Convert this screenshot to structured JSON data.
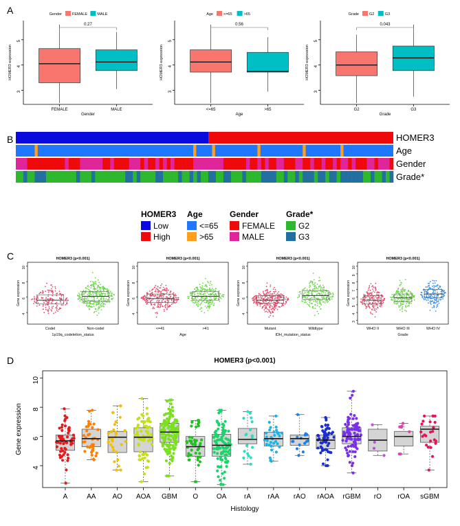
{
  "panel_letters": {
    "a": "A",
    "b": "B",
    "c": "C",
    "d": "D"
  },
  "colors": {
    "salmon": "#f8766d",
    "teal": "#00bfc4",
    "blue": "#0a0adf",
    "red": "#ee0a0a",
    "age_young": "#1f77ff",
    "age_old": "#ff9f1c",
    "female": "#ee0a0a",
    "male": "#e0249a",
    "g2": "#2db82d",
    "g3": "#236fa0",
    "codel": "#e64a6a",
    "noncodel": "#6ad649",
    "who2": "#e64a6a",
    "who3": "#6ad649",
    "who4": "#3a8fe6",
    "boxgrey": "#d4d4d4"
  },
  "chart_data": [
    {
      "id": "A1",
      "type": "boxplot",
      "legend_title": "Gender",
      "legend": [
        "FEMALE",
        "MALE"
      ],
      "categories": [
        "FEMALE",
        "MALE"
      ],
      "xlabel": "Gender",
      "ylabel": "HOMER3 expression",
      "ylim": [
        2.5,
        5.7
      ],
      "yticks": [
        "3",
        "4",
        "5"
      ],
      "pvalue": "0.27",
      "boxes": [
        {
          "label": "FEMALE",
          "min": 2.5,
          "q1": 3.3,
          "median": 4.05,
          "q3": 4.65,
          "max": 5.6
        },
        {
          "label": "MALE",
          "min": 3.05,
          "q1": 3.78,
          "median": 4.12,
          "q3": 4.6,
          "max": 5.3
        }
      ]
    },
    {
      "id": "A2",
      "type": "boxplot",
      "legend_title": "Age",
      "legend": [
        "<=65",
        ">65"
      ],
      "categories": [
        "<=65",
        ">65"
      ],
      "xlabel": "Age",
      "ylabel": "HOMER3 expression",
      "ylim": [
        2.5,
        5.7
      ],
      "yticks": [
        "3",
        "4",
        "5"
      ],
      "pvalue": "0.56",
      "boxes": [
        {
          "label": "<=65",
          "min": 2.5,
          "q1": 3.72,
          "median": 4.12,
          "q3": 4.6,
          "max": 5.6
        },
        {
          "label": ">65",
          "min": 2.95,
          "q1": 3.72,
          "median": 3.75,
          "q3": 4.5,
          "max": 5.1
        }
      ]
    },
    {
      "id": "A3",
      "type": "boxplot",
      "legend_title": "Grade",
      "legend": [
        "G2",
        "G3"
      ],
      "categories": [
        "G2",
        "G3"
      ],
      "xlabel": "Grade",
      "ylabel": "HOMER3 expression",
      "ylim": [
        2.5,
        5.7
      ],
      "yticks": [
        "3",
        "4",
        "5"
      ],
      "pvalue": "0.043",
      "boxes": [
        {
          "label": "G2",
          "min": 2.5,
          "q1": 3.58,
          "median": 4.0,
          "q3": 4.52,
          "max": 5.2
        },
        {
          "label": "G3",
          "min": 2.75,
          "q1": 3.78,
          "median": 4.28,
          "q3": 4.75,
          "max": 5.6
        }
      ]
    },
    {
      "id": "B",
      "type": "heatmap",
      "n_samples": 100,
      "rows": [
        "HOMER3",
        "Age",
        "Gender",
        "Grade*"
      ],
      "homer3_low_fraction": 0.51,
      "age_old_samples": [
        5,
        47,
        52,
        64,
        76,
        86
      ],
      "legend": [
        {
          "title": "HOMER3",
          "items": [
            "Low",
            "High"
          ]
        },
        {
          "title": "Age",
          "items": [
            "<=65",
            ">65"
          ]
        },
        {
          "title": "Gender",
          "items": [
            "FEMALE",
            "MALE"
          ]
        },
        {
          "title": "Grade*",
          "items": [
            "G2",
            "G3"
          ]
        }
      ]
    },
    {
      "id": "C1",
      "type": "beeswarm",
      "title": "HOMER3 (p<0.001)",
      "xlabel": "1p19q_codeletion_status",
      "ylabel": "Gene expression",
      "categories": [
        "Codel",
        "Non-codel"
      ],
      "ylim": [
        2.5,
        10.5
      ],
      "yticks": [
        "4",
        "6",
        "8",
        "10"
      ],
      "groups": [
        {
          "label": "Codel",
          "median": 5.6,
          "q1": 5.1,
          "q3": 6.3,
          "min": 3.5,
          "max": 8.5,
          "n": 160
        },
        {
          "label": "Non-codel",
          "median": 6.1,
          "q1": 5.5,
          "q3": 6.7,
          "min": 3.0,
          "max": 9.8,
          "n": 320
        }
      ]
    },
    {
      "id": "C2",
      "type": "beeswarm",
      "title": "HOMER3 (p<0.001)",
      "xlabel": "Age",
      "ylabel": "Gene expression",
      "categories": [
        "<=41",
        ">41"
      ],
      "ylim": [
        2.5,
        10.5
      ],
      "yticks": [
        "4",
        "6",
        "8",
        "10"
      ],
      "groups": [
        {
          "label": "<=41",
          "median": 5.8,
          "q1": 5.3,
          "q3": 6.4,
          "min": 3.2,
          "max": 9.6,
          "n": 260
        },
        {
          "label": ">41",
          "median": 6.1,
          "q1": 5.6,
          "q3": 6.7,
          "min": 3.3,
          "max": 8.5,
          "n": 260
        }
      ]
    },
    {
      "id": "C3",
      "type": "beeswarm",
      "title": "HOMER3 (p<0.001)",
      "xlabel": "IDH_mutation_status",
      "ylabel": "Gene expression",
      "categories": [
        "Mutant",
        "Wildtype"
      ],
      "ylim": [
        2.5,
        10.5
      ],
      "yticks": [
        "4",
        "6",
        "8",
        "10"
      ],
      "groups": [
        {
          "label": "Mutant",
          "median": 5.6,
          "q1": 5.2,
          "q3": 6.2,
          "min": 3.2,
          "max": 8.0,
          "n": 280
        },
        {
          "label": "Wildtype",
          "median": 6.2,
          "q1": 5.7,
          "q3": 6.8,
          "min": 3.0,
          "max": 9.5,
          "n": 240
        }
      ]
    },
    {
      "id": "C4",
      "type": "beeswarm",
      "title": "HOMER3 (p<0.001)",
      "xlabel": "Grade",
      "ylabel": "Gene expression",
      "categories": [
        "WHO II",
        "WHO III",
        "WHO IV"
      ],
      "ylim": [
        2.5,
        10.5
      ],
      "yticks": [
        "3",
        "4",
        "5",
        "6",
        "7",
        "8",
        "9",
        "10"
      ],
      "groups": [
        {
          "label": "WHO II",
          "median": 5.6,
          "q1": 5.1,
          "q3": 6.2,
          "min": 3.1,
          "max": 8.0,
          "n": 180
        },
        {
          "label": "WHO III",
          "median": 5.9,
          "q1": 5.4,
          "q3": 6.4,
          "min": 3.3,
          "max": 9.0,
          "n": 180
        },
        {
          "label": "WHO IV",
          "median": 6.4,
          "q1": 5.9,
          "q3": 7.0,
          "min": 3.8,
          "max": 9.8,
          "n": 180
        }
      ]
    },
    {
      "id": "D",
      "type": "boxplot_jitter",
      "title": "HOMER3 (p<0.001)",
      "xlabel": "Histology",
      "ylabel": "Gene expression",
      "ylim": [
        2.5,
        10.5
      ],
      "yticks": [
        "4",
        "6",
        "8",
        "10"
      ],
      "categories": [
        "A",
        "AA",
        "AO",
        "AOA",
        "GBM",
        "O",
        "OA",
        "rA",
        "rAA",
        "rAO",
        "rAOA",
        "rGBM",
        "rO",
        "rOA",
        "sGBM"
      ],
      "groups": [
        {
          "label": "A",
          "color": "#e41a1c",
          "min": 2.8,
          "q1": 5.05,
          "median": 5.7,
          "q3": 6.1,
          "max": 7.9,
          "n": 60
        },
        {
          "label": "AA",
          "color": "#ff7f00",
          "min": 4.4,
          "q1": 5.3,
          "median": 5.85,
          "q3": 6.5,
          "max": 7.8,
          "n": 40
        },
        {
          "label": "AO",
          "color": "#f0c000",
          "min": 3.7,
          "q1": 4.9,
          "median": 5.95,
          "q3": 6.35,
          "max": 8.1,
          "n": 30
        },
        {
          "label": "AOA",
          "color": "#c6e017",
          "min": 2.9,
          "q1": 4.95,
          "median": 5.95,
          "q3": 6.6,
          "max": 8.6,
          "n": 70
        },
        {
          "label": "GBM",
          "color": "#7be01f",
          "min": 3.3,
          "q1": 5.6,
          "median": 6.3,
          "q3": 6.9,
          "max": 8.5,
          "n": 150
        },
        {
          "label": "O",
          "color": "#22c022",
          "min": 2.9,
          "q1": 4.65,
          "median": 5.3,
          "q3": 6.0,
          "max": 7.1,
          "n": 45
        },
        {
          "label": "OA",
          "color": "#19d46b",
          "min": 2.7,
          "q1": 4.65,
          "median": 5.4,
          "q3": 6.15,
          "max": 7.8,
          "n": 100
        },
        {
          "label": "rA",
          "color": "#2adfc0",
          "min": 4.1,
          "q1": 5.5,
          "median": 5.8,
          "q3": 6.55,
          "max": 7.7,
          "n": 18
        },
        {
          "label": "rAA",
          "color": "#18b4e8",
          "min": 4.3,
          "q1": 5.35,
          "median": 5.85,
          "q3": 6.3,
          "max": 7.4,
          "n": 32
        },
        {
          "label": "rAO",
          "color": "#1a7fe8",
          "min": 4.7,
          "q1": 5.4,
          "median": 5.85,
          "q3": 6.1,
          "max": 7.5,
          "n": 15
        },
        {
          "label": "rAOA",
          "color": "#1a2fd0",
          "min": 4.0,
          "q1": 5.15,
          "median": 5.75,
          "q3": 6.1,
          "max": 7.3,
          "n": 60
        },
        {
          "label": "rGBM",
          "color": "#7a2fe8",
          "min": 3.5,
          "q1": 5.5,
          "median": 6.0,
          "q3": 6.6,
          "max": 9.1,
          "n": 90
        },
        {
          "label": "rO",
          "color": "#c04fe0",
          "min": 4.7,
          "q1": 5.0,
          "median": 5.75,
          "q3": 6.5,
          "max": 6.8,
          "n": 4
        },
        {
          "label": "rOA",
          "color": "#e040b0",
          "min": 4.8,
          "q1": 5.35,
          "median": 6.0,
          "q3": 6.35,
          "max": 6.9,
          "n": 7
        },
        {
          "label": "sGBM",
          "color": "#e8105a",
          "min": 3.7,
          "q1": 5.6,
          "median": 6.5,
          "q3": 6.7,
          "max": 7.4,
          "n": 25
        }
      ]
    }
  ]
}
